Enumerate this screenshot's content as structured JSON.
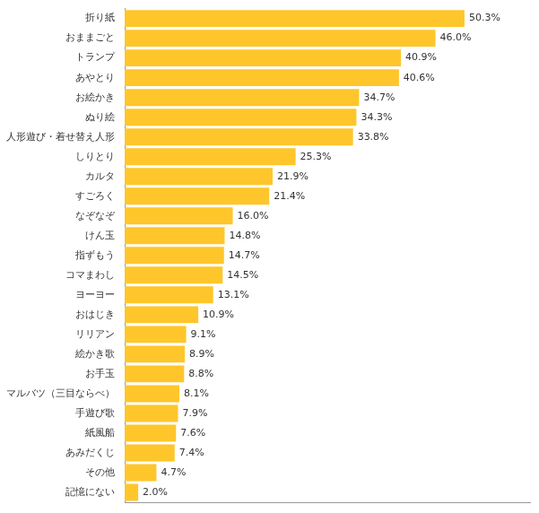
{
  "chart_data": {
    "type": "bar",
    "orientation": "horizontal",
    "categories": [
      "折り紙",
      "おままごと",
      "トランプ",
      "あやとり",
      "お絵かき",
      "ぬり絵",
      "人形遊び・着せ替え人形",
      "しりとり",
      "カルタ",
      "すごろく",
      "なぞなぞ",
      "けん玉",
      "指ずもう",
      "コマまわし",
      "ヨーヨー",
      "おはじき",
      "リリアン",
      "絵かき歌",
      "お手玉",
      "マルバツ（三目ならべ）",
      "手遊び歌",
      "紙風船",
      "あみだくじ",
      "その他",
      "記憶にない"
    ],
    "values": [
      50.3,
      46.0,
      40.9,
      40.6,
      34.7,
      34.3,
      33.8,
      25.3,
      21.9,
      21.4,
      16.0,
      14.8,
      14.7,
      14.5,
      13.1,
      10.9,
      9.1,
      8.9,
      8.8,
      8.1,
      7.9,
      7.6,
      7.4,
      4.7,
      2.0
    ],
    "value_labels": [
      "50.3%",
      "46.0%",
      "40.9%",
      "40.6%",
      "34.7%",
      "34.3%",
      "33.8%",
      "25.3%",
      "21.9%",
      "21.4%",
      "16.0%",
      "14.8%",
      "14.7%",
      "14.5%",
      "13.1%",
      "10.9%",
      "9.1%",
      "8.9%",
      "8.8%",
      "8.1%",
      "7.9%",
      "7.6%",
      "7.4%",
      "4.7%",
      "2.0%"
    ],
    "color": "#fec62a",
    "xlim": [
      0,
      60
    ],
    "grid": false,
    "data_labels": true,
    "tick_labels": "y"
  }
}
